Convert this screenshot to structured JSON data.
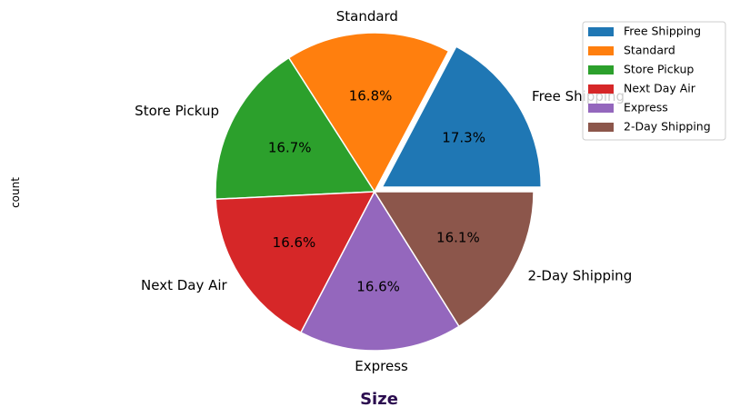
{
  "chart_data": {
    "type": "pie",
    "categories": [
      "Free Shipping",
      "Standard",
      "Store Pickup",
      "Next Day Air",
      "Express",
      "2-Day Shipping"
    ],
    "values": [
      17.3,
      16.8,
      16.7,
      16.6,
      16.6,
      16.1
    ],
    "percent_labels": [
      "17.3%",
      "16.8%",
      "16.7%",
      "16.6%",
      "16.6%",
      "16.1%"
    ],
    "colors": [
      "#1f77b4",
      "#ff7f0e",
      "#2ca02c",
      "#d62728",
      "#9467bd",
      "#8c564b"
    ],
    "exploded": [
      true,
      false,
      false,
      false,
      false,
      false
    ],
    "start_angle_deg": 0,
    "direction": "counterclockwise",
    "xlabel": "Size",
    "xlabel_color": "#2b0d4f",
    "ylabel": "count",
    "legend_position": "top-right",
    "title": ""
  }
}
